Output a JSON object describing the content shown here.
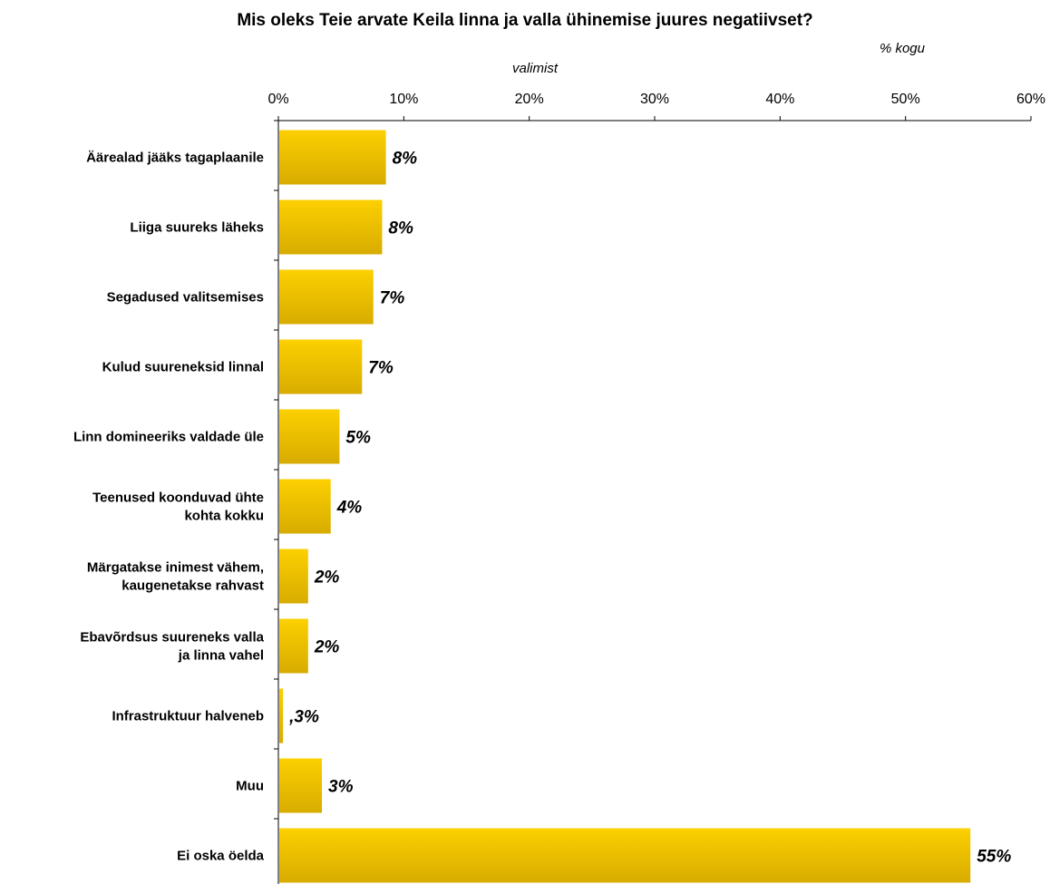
{
  "chart_data": {
    "type": "bar",
    "orientation": "horizontal",
    "title": "Mis oleks Teie arvate Keila linna ja valla ühinemise juures negatiivset?",
    "unit_label_line1": "% kogu",
    "unit_label_line2": "valimist",
    "xlim": [
      0,
      60
    ],
    "x_ticks": [
      "0%",
      "10%",
      "20%",
      "30%",
      "40%",
      "50%",
      "60%"
    ],
    "x_tick_values": [
      0,
      10,
      20,
      30,
      40,
      50,
      60
    ],
    "grid": false,
    "bar_color_top": "#fcd000",
    "bar_color_bottom": "#d8ac00",
    "categories": [
      [
        "Äärealad jääks tagaplaanile"
      ],
      [
        "Liiga suureks läheks"
      ],
      [
        "Segadused valitsemises"
      ],
      [
        "Kulud suureneksid linnal"
      ],
      [
        "Linn domineeriks valdade üle"
      ],
      [
        "Teenused koonduvad ühte",
        "kohta kokku"
      ],
      [
        "Märgatakse inimest vähem,",
        "kaugenetakse rahvast"
      ],
      [
        "Ebavõrdsus suureneks valla",
        "ja linna vahel"
      ],
      [
        "Infrastruktuur halveneb"
      ],
      [
        "Muu"
      ],
      [
        "Ei oska öelda"
      ]
    ],
    "values": [
      8.5,
      8.2,
      7.5,
      6.6,
      4.8,
      4.1,
      2.3,
      2.3,
      0.3,
      3.4,
      55.1
    ],
    "data_labels": [
      "8%",
      "8%",
      "7%",
      "7%",
      "5%",
      "4%",
      "2%",
      "2%",
      ",3%",
      "3%",
      "55%"
    ]
  }
}
